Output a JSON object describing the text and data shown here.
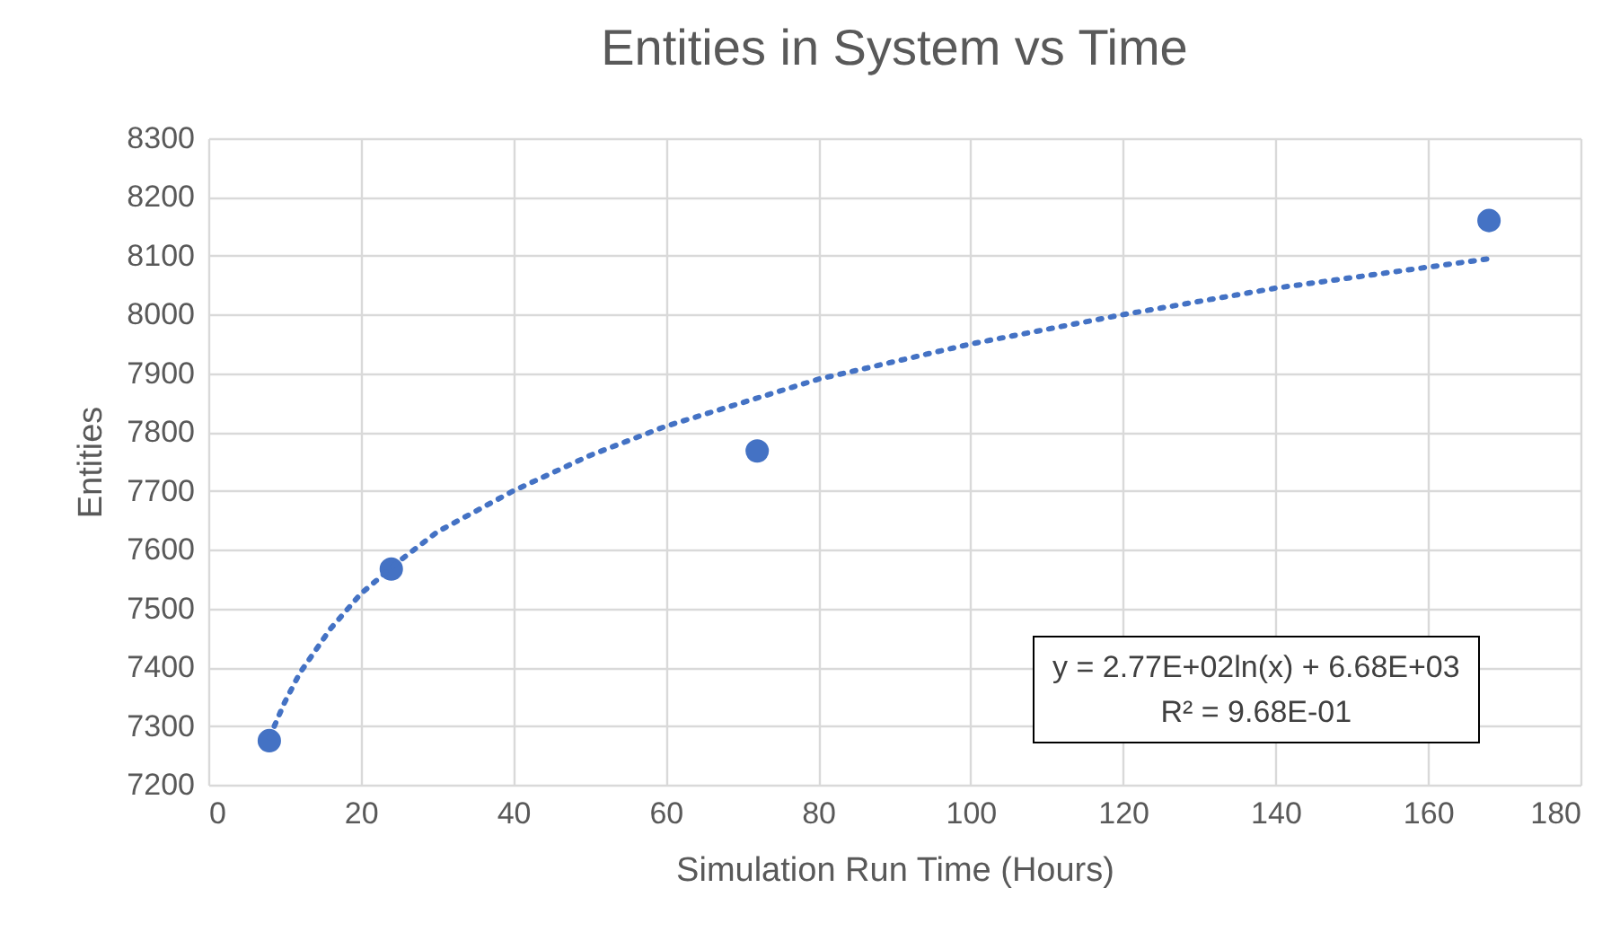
{
  "chart_data": {
    "type": "scatter",
    "title": "Entities in System vs Time",
    "xlabel": "Simulation Run Time (Hours)",
    "ylabel": "Entities",
    "x": [
      8,
      24,
      72,
      168
    ],
    "series": [
      {
        "type": "scatter",
        "color": "#4472c4",
        "marker": "circle",
        "values": [
          7275,
          7567,
          7768,
          8160
        ]
      },
      {
        "type": "line",
        "color": "#4472c4",
        "marker": "none",
        "line_style": "dotted",
        "x": [
          8,
          10,
          12,
          16,
          20,
          25,
          30,
          40,
          50,
          60,
          80,
          100,
          120,
          140,
          168
        ],
        "values": [
          7280,
          7340,
          7390,
          7465,
          7525,
          7580,
          7630,
          7700,
          7760,
          7810,
          7890,
          7950,
          8000,
          8045,
          8095
        ]
      }
    ],
    "xlim": [
      0,
      180
    ],
    "xticks": [
      0,
      20,
      40,
      60,
      80,
      100,
      120,
      140,
      160,
      180
    ],
    "ylim": [
      7200,
      8300
    ],
    "yticks": [
      7200,
      7300,
      7400,
      7500,
      7600,
      7700,
      7800,
      7900,
      8000,
      8100,
      8200,
      8300
    ],
    "grid": true,
    "annotations": [
      "y = 2.77E+02ln(x) + 6.68E+03",
      "R² = 9.68E-01"
    ]
  }
}
